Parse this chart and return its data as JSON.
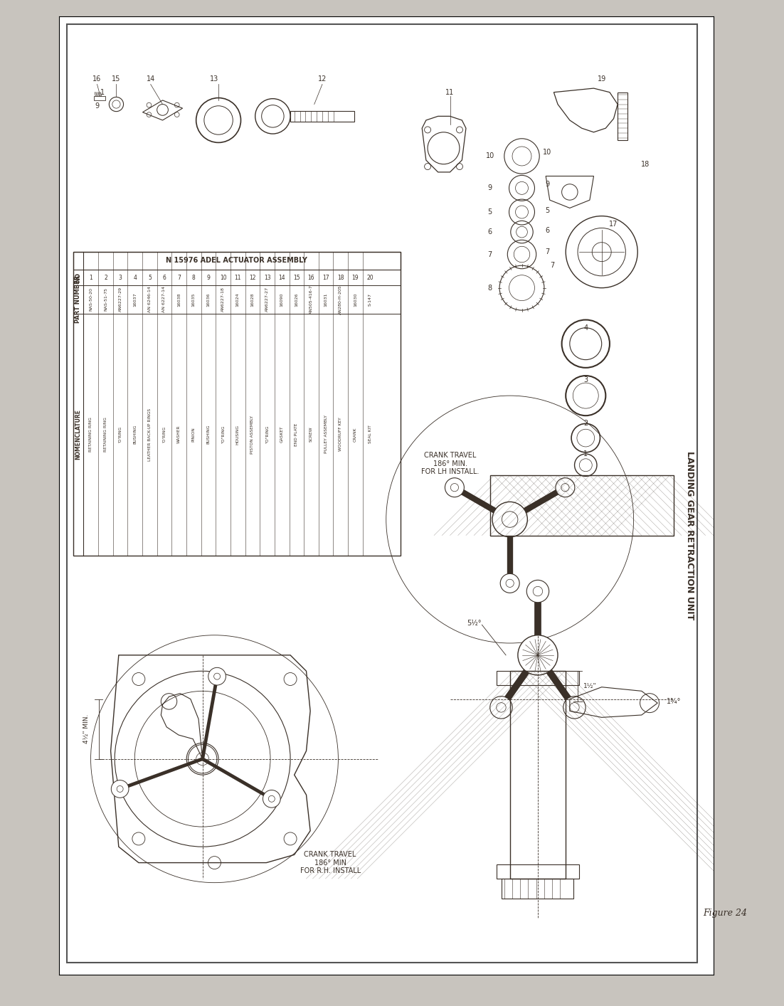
{
  "page_bg": "#ffffff",
  "border_outer_color": "#555555",
  "drawing_bg": "#f8f6f2",
  "line_color": "#3a3028",
  "title_caption": "Figure 24",
  "main_title": "LANDING GEAR RETRACTION UNIT",
  "table_title": "N 15976 ADEL ACTUATOR ASSEMBLY",
  "table_headers": [
    "NO",
    "PART NUMBER",
    "NOMENCLATURE"
  ],
  "table_data": [
    [
      "1",
      "NAS-50-20",
      "RETAINING RING"
    ],
    [
      "2",
      "NAS-51-75",
      "RETAINING RING"
    ],
    [
      "3",
      "AN6227-29",
      "'O'RING"
    ],
    [
      "4",
      "16037",
      "BUSHING"
    ],
    [
      "5",
      "AN 6246-14",
      "LEATHER BACK-UP RINGS"
    ],
    [
      "6",
      "AN 6227-14",
      "'O'RING"
    ],
    [
      "7",
      "16038",
      "WASHER"
    ],
    [
      "8",
      "16035",
      "PINION"
    ],
    [
      "9",
      "16036",
      "BUSHING"
    ],
    [
      "10",
      "AN6227-18",
      "\"O\"RING"
    ],
    [
      "11",
      "16024",
      "HOUSING"
    ],
    [
      "12",
      "16028",
      "PISTON ASSEMBLY"
    ],
    [
      "13",
      "AN6227-27",
      "\"O\"RING"
    ],
    [
      "14",
      "16090",
      "GASKET"
    ],
    [
      "15",
      "16026",
      "END PLATE"
    ],
    [
      "16",
      "AN505-416-7",
      "SCREW"
    ],
    [
      "17",
      "16031",
      "PULLEY ASSEMBLY"
    ],
    [
      "18",
      "AN280-H-205",
      "WOODRUFF KEY"
    ],
    [
      "19",
      "16030",
      "CRANK"
    ],
    [
      "20",
      "S-147",
      "SEAL KIT"
    ]
  ],
  "annotation_lh": "CRANK TRAVEL\n186° MIN.\nFOR LH INSTALL.",
  "annotation_rh": "CRANK TRAVEL\n186° MIN\nFOR R.H. INSTALL",
  "dim_travel": "5½°",
  "dim_min": "4½\" MIN.",
  "dim_half": "1½\"",
  "dim_angle": "1¾°",
  "outer_margin_color": "#c8c4be"
}
